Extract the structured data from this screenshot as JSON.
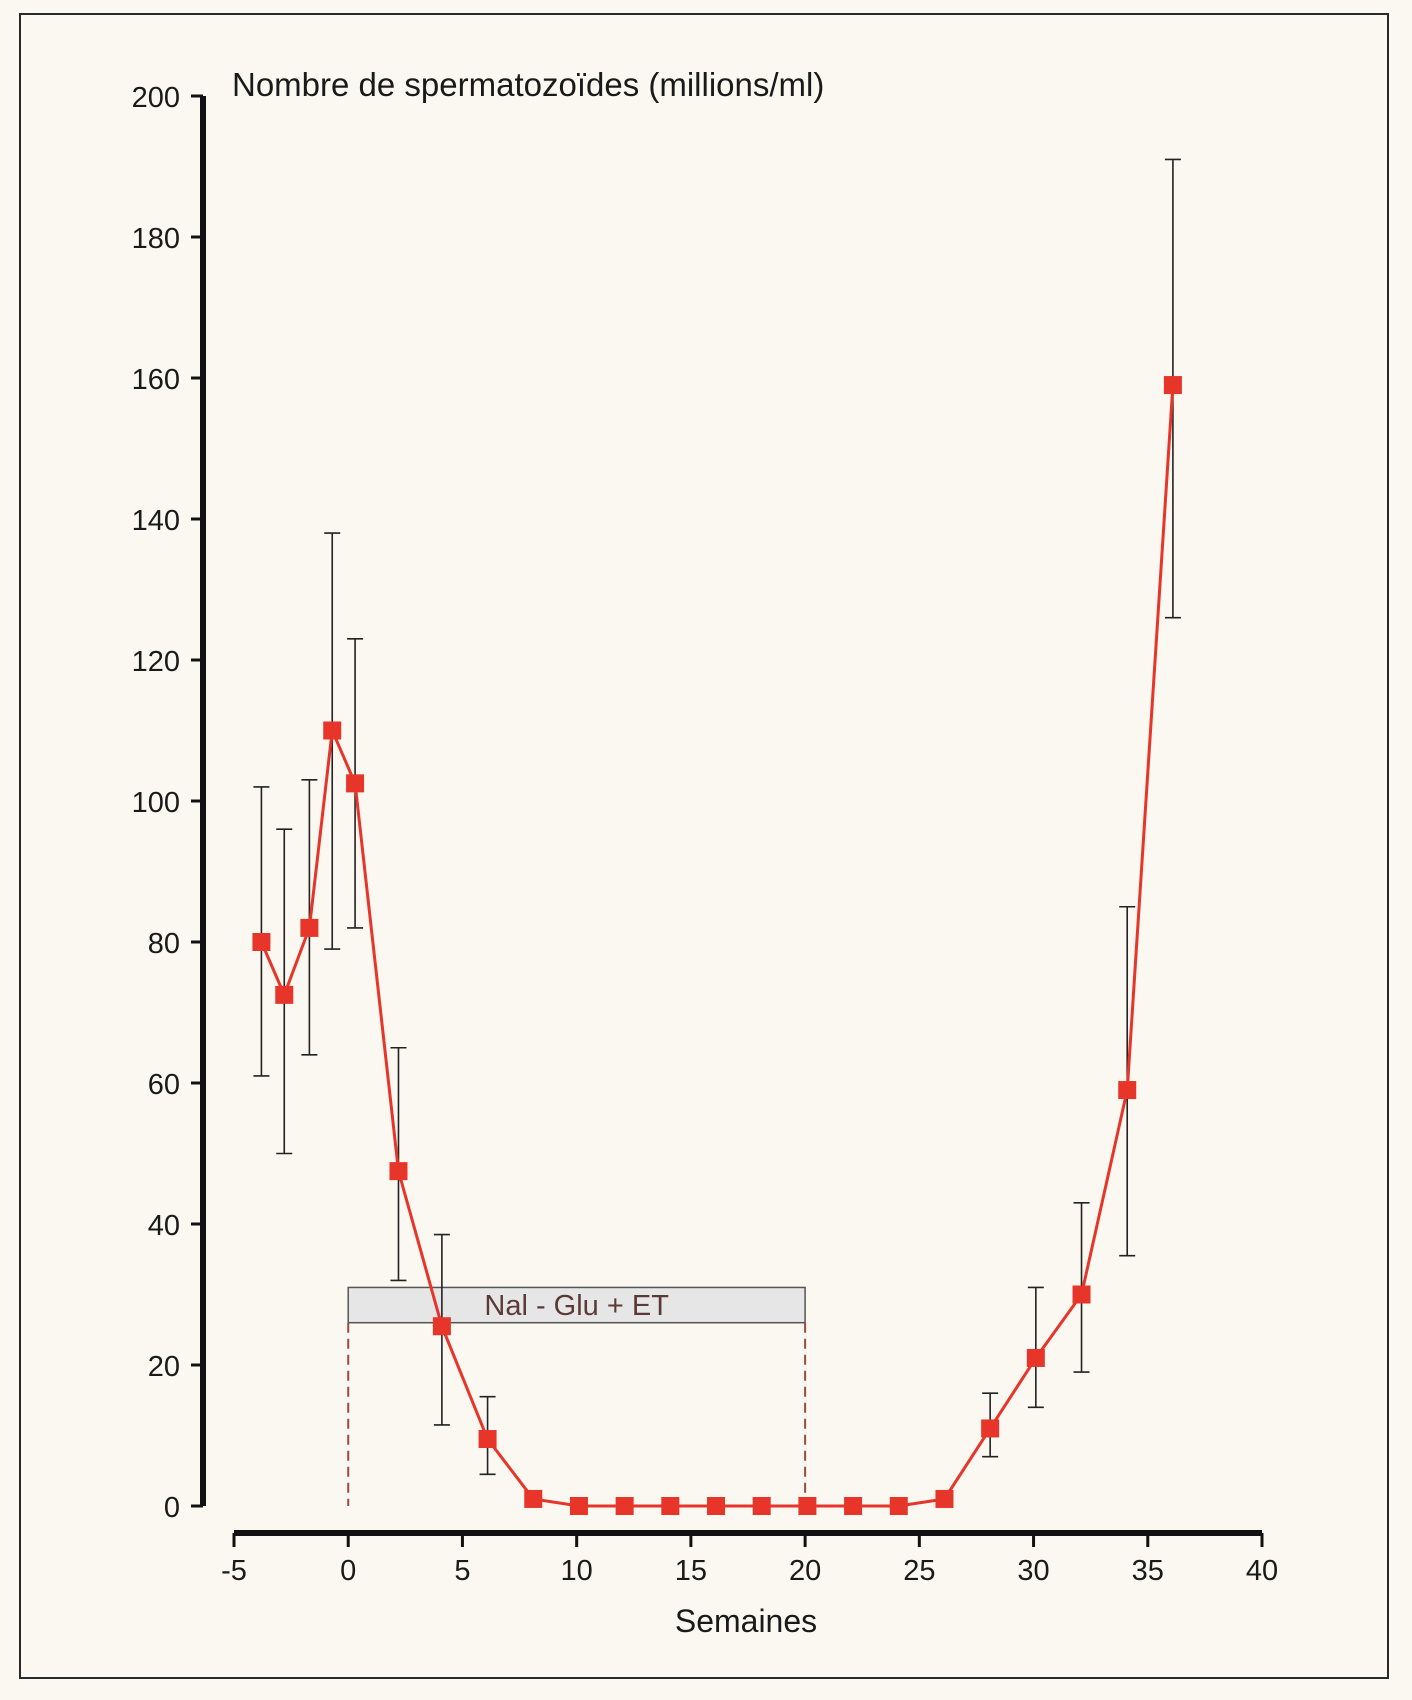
{
  "chart_data": {
    "type": "line",
    "title": "Nombre de spermatozoïdes (millions/ml)",
    "xlabel": "Semaines",
    "ylabel": "Nombre de spermatozoïdes (millions/ml)",
    "xlim": [
      -5,
      40
    ],
    "ylim": [
      0,
      200
    ],
    "x_ticks": [
      -5,
      0,
      5,
      10,
      15,
      20,
      25,
      30,
      35,
      40
    ],
    "y_ticks": [
      0,
      20,
      40,
      60,
      80,
      100,
      120,
      140,
      160,
      180,
      200
    ],
    "grid": false,
    "series": [
      {
        "color": "#e8352a",
        "marker": "square",
        "points": [
          {
            "x": -3.8,
            "y": 80,
            "lo": 61,
            "hi": 102
          },
          {
            "x": -2.8,
            "y": 72.5,
            "lo": 50,
            "hi": 96
          },
          {
            "x": -1.7,
            "y": 82,
            "lo": 64,
            "hi": 103
          },
          {
            "x": -0.7,
            "y": 110,
            "lo": 79,
            "hi": 138
          },
          {
            "x": 0.3,
            "y": 102.5,
            "lo": 82,
            "hi": 123
          },
          {
            "x": 2.2,
            "y": 47.5,
            "lo": 32,
            "hi": 65
          },
          {
            "x": 4.1,
            "y": 25.5,
            "lo": 11.5,
            "hi": 38.5
          },
          {
            "x": 6.1,
            "y": 9.5,
            "lo": 4.5,
            "hi": 15.5
          },
          {
            "x": 8.1,
            "y": 1
          },
          {
            "x": 10.1,
            "y": 0
          },
          {
            "x": 12.1,
            "y": 0
          },
          {
            "x": 14.1,
            "y": 0
          },
          {
            "x": 16.1,
            "y": 0
          },
          {
            "x": 18.1,
            "y": 0
          },
          {
            "x": 20.1,
            "y": 0
          },
          {
            "x": 22.1,
            "y": 0
          },
          {
            "x": 24.1,
            "y": 0
          },
          {
            "x": 26.1,
            "y": 1
          },
          {
            "x": 28.1,
            "y": 11,
            "lo": 7,
            "hi": 16
          },
          {
            "x": 30.1,
            "y": 21,
            "lo": 14,
            "hi": 31
          },
          {
            "x": 32.1,
            "y": 30,
            "lo": 19,
            "hi": 43
          },
          {
            "x": 34.1,
            "y": 59,
            "lo": 35.5,
            "hi": 85
          },
          {
            "x": 36.1,
            "y": 159,
            "lo": 126,
            "hi": 191
          }
        ]
      }
    ],
    "annotations": [
      {
        "text": "Nal - Glu + ET",
        "x_start": 0,
        "x_end": 20,
        "y_bottom": 26,
        "y_top": 31
      }
    ],
    "colors": {
      "background": "#faf8f1",
      "frame": "#2a2a2a",
      "axis": "#111111",
      "annotation_fill": "#e6e6e6",
      "annotation_text": "#5a3a36",
      "annotation_dash": "#9c4a40"
    }
  }
}
